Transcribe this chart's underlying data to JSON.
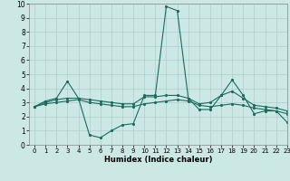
{
  "xlabel": "Humidex (Indice chaleur)",
  "ylabel": "",
  "xlim": [
    -0.5,
    23
  ],
  "ylim": [
    0,
    10
  ],
  "xticks": [
    0,
    1,
    2,
    3,
    4,
    5,
    6,
    7,
    8,
    9,
    10,
    11,
    12,
    13,
    14,
    15,
    16,
    17,
    18,
    19,
    20,
    21,
    22,
    23
  ],
  "yticks": [
    0,
    1,
    2,
    3,
    4,
    5,
    6,
    7,
    8,
    9,
    10
  ],
  "bg_color": "#cce8e4",
  "line_color": "#1a6b5a",
  "grid_color": "#b0ceca",
  "series": [
    {
      "x": [
        0,
        1,
        2,
        3,
        4,
        5,
        6,
        7,
        8,
        9,
        10,
        11,
        12,
        13,
        14,
        15,
        16,
        17,
        18,
        19,
        20,
        21,
        22,
        23
      ],
      "y": [
        2.7,
        3.1,
        3.3,
        4.5,
        3.3,
        0.7,
        0.5,
        1.0,
        1.4,
        1.5,
        3.5,
        3.5,
        9.8,
        9.5,
        3.3,
        2.5,
        2.5,
        3.5,
        4.6,
        3.5,
        2.2,
        2.4,
        2.4,
        1.6
      ]
    },
    {
      "x": [
        0,
        1,
        2,
        3,
        4,
        5,
        6,
        7,
        8,
        9,
        10,
        11,
        12,
        13,
        14,
        15,
        16,
        17,
        18,
        19,
        20,
        21,
        22,
        23
      ],
      "y": [
        2.7,
        3.0,
        3.2,
        3.3,
        3.3,
        3.2,
        3.1,
        3.0,
        2.9,
        2.9,
        3.4,
        3.4,
        3.5,
        3.5,
        3.3,
        2.9,
        3.0,
        3.5,
        3.8,
        3.3,
        2.8,
        2.7,
        2.6,
        2.4
      ]
    },
    {
      "x": [
        0,
        1,
        2,
        3,
        4,
        5,
        6,
        7,
        8,
        9,
        10,
        11,
        12,
        13,
        14,
        15,
        16,
        17,
        18,
        19,
        20,
        21,
        22,
        23
      ],
      "y": [
        2.7,
        2.9,
        3.0,
        3.1,
        3.2,
        3.0,
        2.9,
        2.8,
        2.7,
        2.7,
        2.9,
        3.0,
        3.1,
        3.2,
        3.1,
        2.8,
        2.7,
        2.8,
        2.9,
        2.8,
        2.6,
        2.5,
        2.4,
        2.2
      ]
    }
  ],
  "xlabel_fontsize": 6.0,
  "tick_fontsize_x": 5.0,
  "tick_fontsize_y": 5.5
}
